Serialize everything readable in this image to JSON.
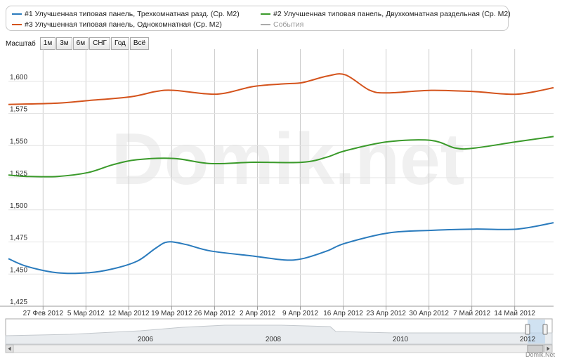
{
  "legend": {
    "s1": "#1 Улучшенная типовая панель, Трехкомнатная разд. (Ср. М2)",
    "s2": "#2 Улучшенная типовая панель, Двухкомнатная раздельная (Ср. М2)",
    "s3": "#3 Улучшенная типовая панель, Однокомнатная (Ср. М2)",
    "events": "События"
  },
  "zoom": {
    "label": "Масштаб",
    "buttons": [
      "1м",
      "3м",
      "6м",
      "СНГ",
      "Год",
      "Всё"
    ]
  },
  "watermark": "Domik.net",
  "credit": "Domik.Net",
  "colors": {
    "s1": "#2a7bbd",
    "s2": "#3a9a2a",
    "s3": "#d4531c",
    "events": "#aaaaaa",
    "grid": "#cccccc"
  },
  "chart_data": {
    "type": "line",
    "ylim": [
      1425,
      1625
    ],
    "yticks": [
      1425,
      1450,
      1475,
      1500,
      1525,
      1550,
      1575,
      1600
    ],
    "ytick_labels": [
      "1,425",
      "1,450",
      "1,475",
      "1,500",
      "1,525",
      "1,550",
      "1,575",
      "1,600"
    ],
    "xrange": [
      "2012-02-21",
      "2012-05-20"
    ],
    "xticks": [
      "2012-02-27",
      "2012-03-05",
      "2012-03-12",
      "2012-03-19",
      "2012-03-26",
      "2012-04-02",
      "2012-04-09",
      "2012-04-16",
      "2012-04-23",
      "2012-04-30",
      "2012-05-07",
      "2012-05-14"
    ],
    "xtick_labels": [
      "27 Фев 2012",
      "5 Мар 2012",
      "12 Мар 2012",
      "19 Мар 2012",
      "26 Мар 2012",
      "2 Апр 2012",
      "9 Апр 2012",
      "16 Апр 2012",
      "23 Апр 2012",
      "30 Апр 2012",
      "7 Май 2012",
      "14 Май 2012"
    ],
    "series": [
      {
        "name": "#1 Улучшенная типовая панель, Трехкомнатная разд. (Ср. М2)",
        "x": [
          "2012-02-21",
          "2012-02-24",
          "2012-02-29",
          "2012-03-05",
          "2012-03-09",
          "2012-03-13",
          "2012-03-16",
          "2012-03-18",
          "2012-03-21",
          "2012-03-25",
          "2012-04-01",
          "2012-04-06",
          "2012-04-09",
          "2012-04-13",
          "2012-04-16",
          "2012-04-23",
          "2012-04-30",
          "2012-05-07",
          "2012-05-14",
          "2012-05-20"
        ],
        "values": [
          1462,
          1456,
          1451,
          1451,
          1454,
          1460,
          1470,
          1475,
          1473,
          1468,
          1464,
          1461,
          1462,
          1468,
          1474,
          1482,
          1484,
          1485,
          1485,
          1490
        ]
      },
      {
        "name": "#2 Улучшенная типовая панель, Двухкомнатная раздельная (Ср. М2)",
        "x": [
          "2012-02-21",
          "2012-02-24",
          "2012-02-29",
          "2012-03-05",
          "2012-03-09",
          "2012-03-13",
          "2012-03-19",
          "2012-03-25",
          "2012-04-01",
          "2012-04-09",
          "2012-04-13",
          "2012-04-16",
          "2012-04-23",
          "2012-04-30",
          "2012-05-04",
          "2012-05-07",
          "2012-05-14",
          "2012-05-20"
        ],
        "values": [
          1527,
          1526,
          1526,
          1529,
          1535,
          1539,
          1540,
          1536,
          1537,
          1537,
          1541,
          1546,
          1553,
          1554,
          1548,
          1548,
          1553,
          1557
        ]
      },
      {
        "name": "#3 Улучшенная типовая панель, Однокомнатная (Ср. М2)",
        "x": [
          "2012-02-21",
          "2012-02-29",
          "2012-03-05",
          "2012-03-12",
          "2012-03-16",
          "2012-03-19",
          "2012-03-26",
          "2012-04-01",
          "2012-04-06",
          "2012-04-09",
          "2012-04-13",
          "2012-04-16",
          "2012-04-20",
          "2012-04-23",
          "2012-04-30",
          "2012-05-07",
          "2012-05-14",
          "2012-05-20"
        ],
        "values": [
          1582,
          1583,
          1585,
          1588,
          1592,
          1593,
          1590,
          1596,
          1598,
          1599,
          1604,
          1605,
          1593,
          1591,
          1593,
          1592,
          1590,
          1595
        ]
      }
    ],
    "navigator": {
      "labels": [
        "2006",
        "2008",
        "2010",
        "2012"
      ]
    }
  }
}
